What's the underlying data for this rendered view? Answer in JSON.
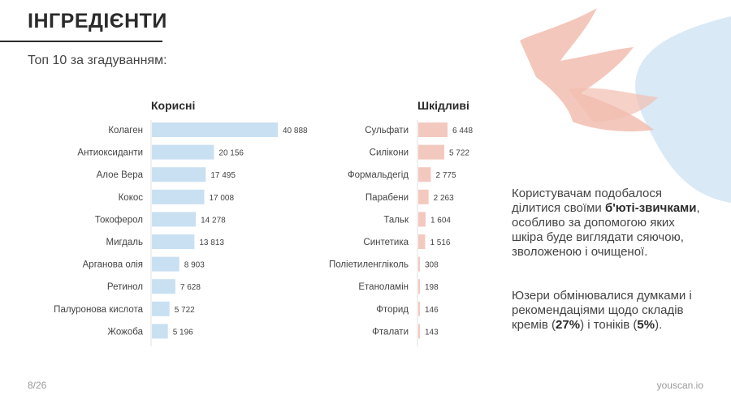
{
  "header": {
    "title": "ІНГРЕДІЄНТИ",
    "subtitle": "Топ 10 за згадуванням:"
  },
  "chart_data": [
    {
      "type": "bar",
      "orientation": "horizontal",
      "title": "Корисні",
      "categories": [
        "Колаген",
        "Антиоксиданти",
        "Алое Вера",
        "Кокос",
        "Токоферол",
        "Мигдаль",
        "Арганова олія",
        "Ретинол",
        "Палуронова кислота",
        "Жожоба"
      ],
      "values": [
        40888,
        20156,
        17495,
        17008,
        14278,
        13813,
        8903,
        7628,
        5722,
        5196
      ],
      "value_labels": [
        "40 888",
        "20 156",
        "17 495",
        "17 008",
        "14 278",
        "13 813",
        "8 903",
        "7 628",
        "5 722",
        "5 196"
      ],
      "color": "#c9e0f2"
    },
    {
      "type": "bar",
      "orientation": "horizontal",
      "title": "Шкідливі",
      "categories": [
        "Сульфати",
        "Силікони",
        "Формальдегід",
        "Парабени",
        "Тальк",
        "Синтетика",
        "Поліетиленгліколь",
        "Етаноламін",
        "Фторид",
        "Фталати"
      ],
      "values": [
        6448,
        5722,
        2775,
        2263,
        1604,
        1516,
        308,
        198,
        146,
        143
      ],
      "value_labels": [
        "6 448",
        "5 722",
        "2 775",
        "2 263",
        "1 604",
        "1 516",
        "308",
        "198",
        "146",
        "143"
      ],
      "color": "#f3c9bf"
    }
  ],
  "description": {
    "p1_a": "Користувачам подобалося ділитися своїми ",
    "p1_b": "б'юті-звичками",
    "p1_c": ", особливо за допомогою яких шкіра буде виглядати сяючою, зволоженою і очищеної.",
    "p2_a": "Юзери обмінювалися думками і рекомендаціями щодо складів кремів (",
    "p2_b": "27%",
    "p2_c": ") і тоніків (",
    "p2_d": "5%",
    "p2_e": ")."
  },
  "footer": {
    "page": "8/26",
    "brand": "youscan.io"
  },
  "colors": {
    "good_bar": "#c9e0f2",
    "bad_bar": "#f3c9bf",
    "deco_blue": "#cfe3f3",
    "deco_pink": "#f2bdb0"
  }
}
